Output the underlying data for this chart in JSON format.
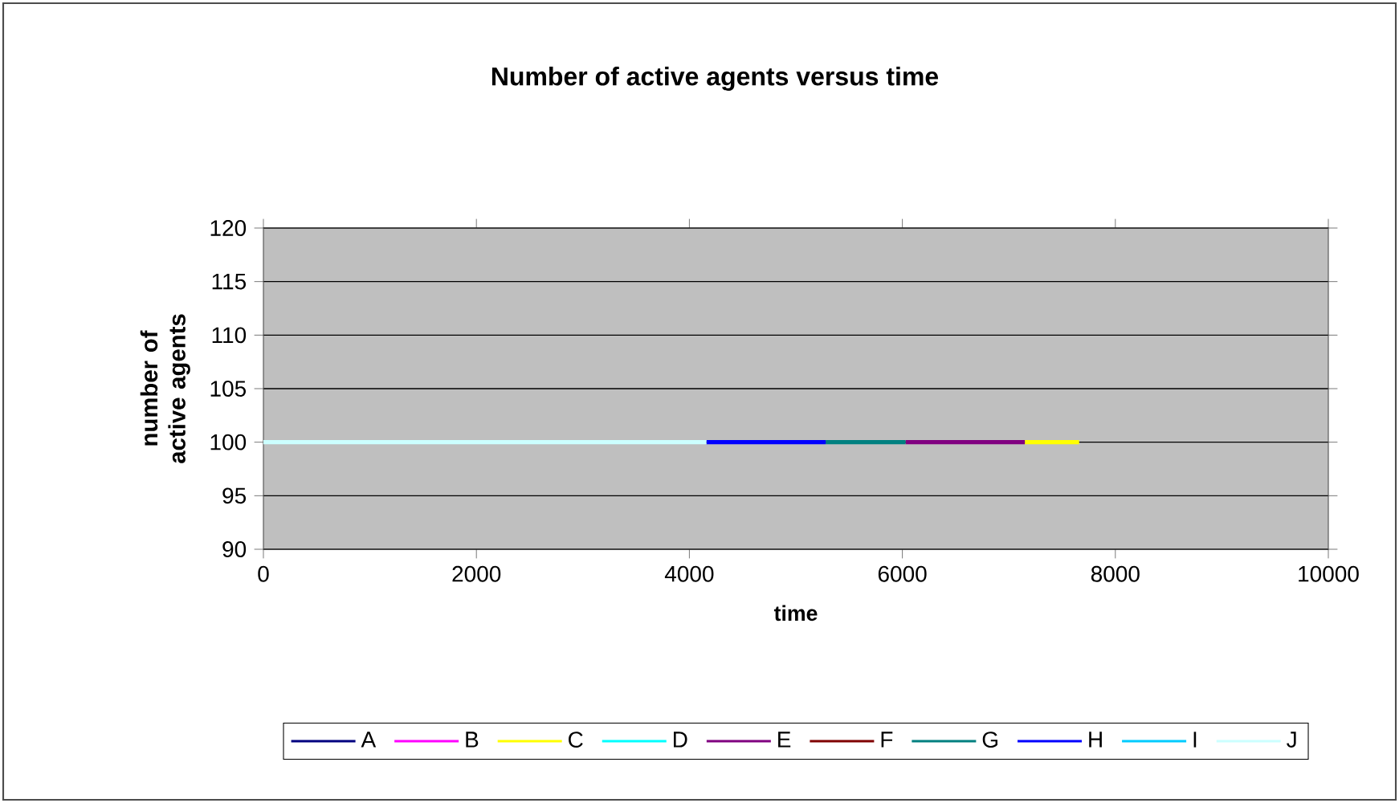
{
  "chart_data": {
    "type": "line",
    "title": "Number of active agents versus time",
    "xlabel": "time",
    "ylabel": "number of active agents",
    "xlim": [
      0,
      10000
    ],
    "xticks": [
      0,
      2000,
      4000,
      6000,
      8000,
      10000
    ],
    "ylim": [
      90,
      120
    ],
    "yticks": [
      90,
      95,
      100,
      105,
      110,
      115,
      120
    ],
    "grid": "y",
    "legend": "bottom",
    "marker": "none",
    "line_style": "solid",
    "series": [
      {
        "name": "A",
        "color": "#000080"
      },
      {
        "name": "B",
        "color": "#ff00ff"
      },
      {
        "name": "C",
        "color": "#ffff00",
        "x": [
          7150,
          7660
        ],
        "values": [
          100,
          100
        ]
      },
      {
        "name": "D",
        "color": "#00ffff"
      },
      {
        "name": "E",
        "color": "#800080",
        "x": [
          6030,
          7150
        ],
        "values": [
          100,
          100
        ]
      },
      {
        "name": "F",
        "color": "#800000"
      },
      {
        "name": "G",
        "color": "#008080",
        "x": [
          5280,
          6030
        ],
        "values": [
          100,
          100
        ]
      },
      {
        "name": "H",
        "color": "#0000ff",
        "x": [
          4160,
          5280
        ],
        "values": [
          100,
          100
        ]
      },
      {
        "name": "I",
        "color": "#00ccff"
      },
      {
        "name": "J",
        "color": "#ccffff",
        "x": [
          0,
          4160
        ],
        "values": [
          100,
          100
        ]
      }
    ]
  }
}
